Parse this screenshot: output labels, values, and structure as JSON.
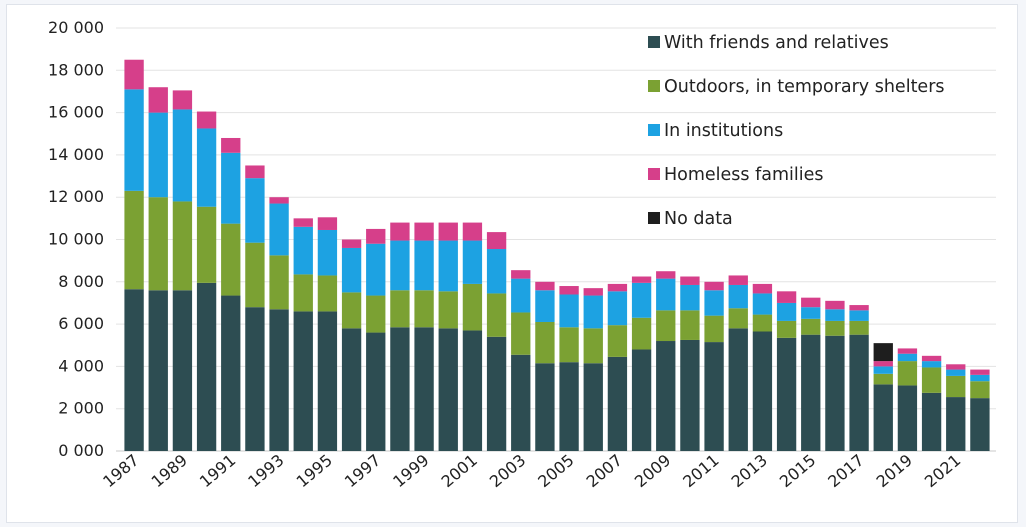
{
  "chart_data": {
    "type": "bar",
    "stacked": true,
    "title": "",
    "xlabel": "",
    "ylabel": "",
    "ylim": [
      0,
      20000
    ],
    "y_ticks": [
      "0 000",
      "2 000",
      "4 000",
      "6 000",
      "8 000",
      "10 000",
      "12 000",
      "14 000",
      "16 000",
      "18 000",
      "20 000"
    ],
    "grid": true,
    "legend_position": "top-right",
    "categories": [
      "1987",
      "1988",
      "1989",
      "1990",
      "1991",
      "1992",
      "1993",
      "1994",
      "1995",
      "1996",
      "1997",
      "1998",
      "1999",
      "2000",
      "2001",
      "2002",
      "2003",
      "2004",
      "2005",
      "2006",
      "2007",
      "2008",
      "2009",
      "2010",
      "2011",
      "2012",
      "2013",
      "2014",
      "2015",
      "2016",
      "2017",
      "2018",
      "2019",
      "2020",
      "2021",
      "2022"
    ],
    "x_tick_labels": [
      "1987",
      "1989",
      "1991",
      "1993",
      "1995",
      "1997",
      "1999",
      "2001",
      "2003",
      "2005",
      "2007",
      "2009",
      "2011",
      "2013",
      "2015",
      "2017",
      "2019",
      "2021"
    ],
    "series": [
      {
        "name": "With friends and relatives",
        "color": "#2d4d52",
        "values": [
          7650,
          7600,
          7600,
          7950,
          7350,
          6800,
          6700,
          6600,
          6600,
          5800,
          5600,
          5850,
          5850,
          5800,
          5700,
          5400,
          4550,
          4150,
          4200,
          4150,
          4450,
          4800,
          5200,
          5250,
          5150,
          5800,
          5650,
          5350,
          5500,
          5450,
          5500,
          3150,
          3100,
          2750,
          2550,
          2500
        ]
      },
      {
        "name": "Outdoors, in temporary shelters",
        "color": "#7ba133",
        "values": [
          4650,
          4400,
          4200,
          3600,
          3400,
          3050,
          2550,
          1750,
          1700,
          1700,
          1750,
          1750,
          1750,
          1750,
          2200,
          2050,
          2000,
          1950,
          1650,
          1650,
          1500,
          1500,
          1450,
          1400,
          1250,
          950,
          800,
          800,
          750,
          700,
          650,
          500,
          1150,
          1200,
          1000,
          800
        ]
      },
      {
        "name": "In institutions",
        "color": "#1da2e2",
        "values": [
          4800,
          4000,
          4350,
          3700,
          3350,
          3050,
          2450,
          2250,
          2150,
          2100,
          2450,
          2350,
          2350,
          2400,
          2050,
          2100,
          1600,
          1500,
          1550,
          1550,
          1600,
          1650,
          1500,
          1200,
          1200,
          1100,
          1000,
          850,
          550,
          550,
          500,
          350,
          350,
          300,
          300,
          300
        ]
      },
      {
        "name": "Homeless families",
        "color": "#d63f8a",
        "values": [
          1400,
          1200,
          900,
          800,
          700,
          600,
          300,
          400,
          600,
          400,
          700,
          850,
          850,
          850,
          850,
          800,
          400,
          400,
          400,
          350,
          350,
          300,
          350,
          400,
          400,
          450,
          450,
          550,
          450,
          400,
          250,
          250,
          250,
          250,
          250,
          250
        ]
      },
      {
        "name": "No data",
        "color": "#1e1e1e",
        "values": [
          0,
          0,
          0,
          0,
          0,
          0,
          0,
          0,
          0,
          0,
          0,
          0,
          0,
          0,
          0,
          0,
          0,
          0,
          0,
          0,
          0,
          0,
          0,
          0,
          0,
          0,
          0,
          0,
          0,
          0,
          0,
          850,
          0,
          0,
          0,
          0
        ]
      }
    ]
  }
}
